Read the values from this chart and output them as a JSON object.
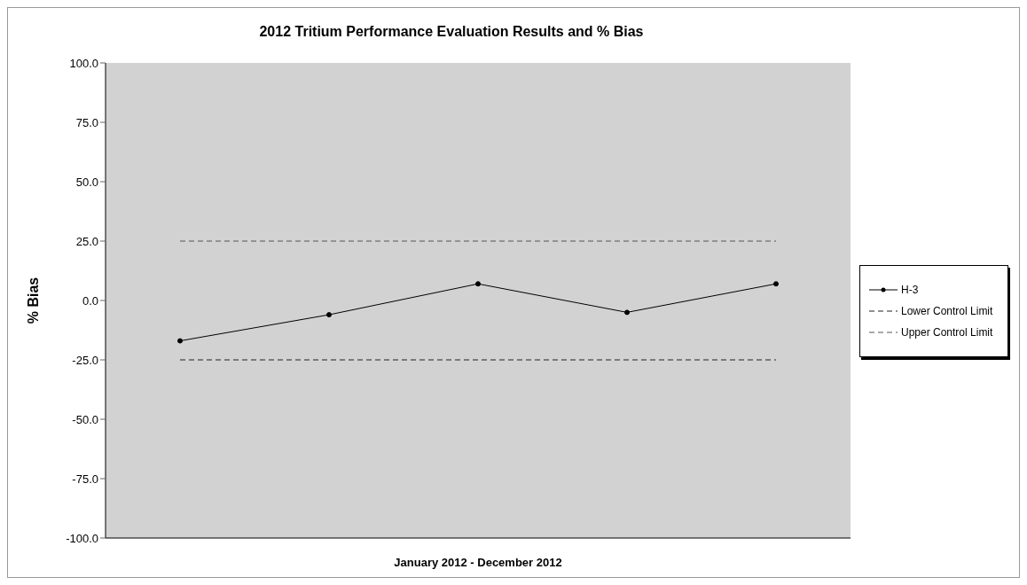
{
  "chart_data": {
    "type": "line",
    "title": "2012 Tritium Performance Evaluation Results and % Bias",
    "xlabel": "January 2012 - December 2012",
    "ylabel": "% Bias",
    "categories": [
      null,
      null,
      null,
      null,
      null
    ],
    "series": [
      {
        "name": "H-3",
        "color": "#000000",
        "values": [
          -17,
          -6,
          7,
          -5,
          7
        ],
        "marker": "circle",
        "line_style": "solid"
      },
      {
        "name": "Lower Control Limit",
        "color": "#222222",
        "values": [
          -25,
          -25,
          -25,
          -25,
          -25
        ],
        "marker": "none",
        "line_style": "dashed"
      },
      {
        "name": "Upper Control Limit",
        "color": "#555555",
        "values": [
          25,
          25,
          25,
          25,
          25
        ],
        "marker": "none",
        "line_style": "dashed"
      }
    ],
    "ylim": [
      -100,
      100
    ],
    "yticks": [
      {
        "value": -100,
        "label": "-100.0"
      },
      {
        "value": -75,
        "label": "-75.0"
      },
      {
        "value": -50,
        "label": "-50.0"
      },
      {
        "value": -25,
        "label": "-25.0"
      },
      {
        "value": 0,
        "label": "0.0"
      },
      {
        "value": 25,
        "label": "25.0"
      },
      {
        "value": 50,
        "label": "50.0"
      },
      {
        "value": 75,
        "label": "75.0"
      },
      {
        "value": 100,
        "label": "100.0"
      }
    ],
    "grid": false,
    "legend": "right"
  }
}
